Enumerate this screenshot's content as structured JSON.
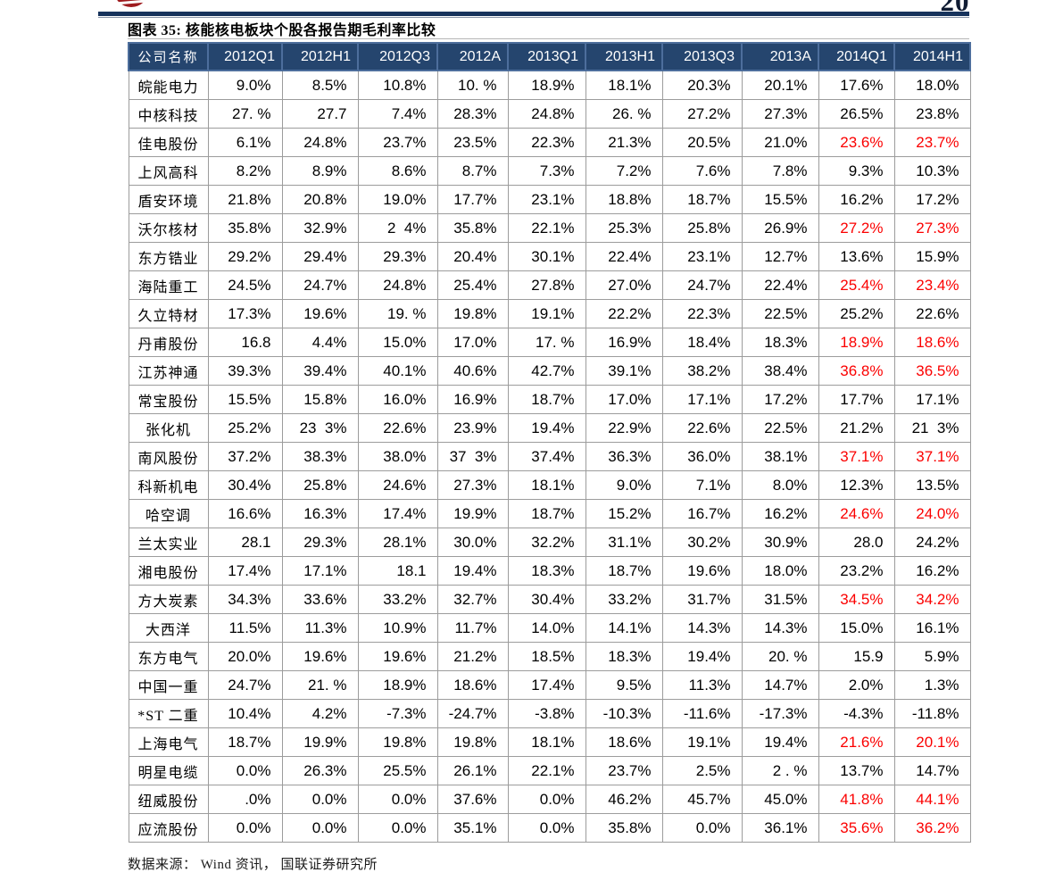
{
  "page": {
    "number": "20",
    "source_note": "数据来源： Wind 资讯， 国联证券研究所"
  },
  "figure": {
    "title": "图表 35: 核能核电板块个股各报告期毛利率比较"
  },
  "icons": {
    "brand_logo": "red-globe-logo"
  },
  "colors": {
    "header_bg": "#25456e",
    "header_border": "#4d6e9c",
    "grid_border": "#9c9c9c",
    "highlight_red": "#fb0000",
    "top_rule_navy": "#17335c",
    "logo_red": "#9e1b1e"
  },
  "table": {
    "columns": [
      "公司名称",
      "2012Q1",
      "2012H1",
      "2012Q3",
      "2012A",
      "2013Q1",
      "2013H1",
      "2013Q3",
      "2013A",
      "2014Q1",
      "2014H1"
    ],
    "rows": [
      {
        "name": "皖能电力",
        "values": [
          "9.0%",
          "8.5%",
          "10.8%",
          "10. %",
          "18.9%",
          "18.1%",
          "20.3%",
          "20.1%",
          "17.6%",
          "18.0%"
        ],
        "red_cols": []
      },
      {
        "name": "中核科技",
        "values": [
          "27. %",
          "27.7",
          "7.4%",
          "28.3%",
          "24.8%",
          "26. %",
          "27.2%",
          "27.3%",
          "26.5%",
          "23.8%"
        ],
        "red_cols": []
      },
      {
        "name": "佳电股份",
        "values": [
          "6.1%",
          "24.8%",
          "23.7%",
          "23.5%",
          "22.3%",
          "21.3%",
          "20.5%",
          "21.0%",
          "23.6%",
          "23.7%"
        ],
        "red_cols": [
          8,
          9
        ]
      },
      {
        "name": "上风高科",
        "values": [
          "8.2%",
          "8.9%",
          "8.6%",
          "8.7%",
          "7.3%",
          "7.2%",
          "7.6%",
          "7.8%",
          "9.3%",
          "10.3%"
        ],
        "red_cols": []
      },
      {
        "name": "盾安环境",
        "values": [
          "21.8%",
          "20.8%",
          "19.0%",
          "17.7%",
          "23.1%",
          "18.8%",
          "18.7%",
          "15.5%",
          "16.2%",
          "17.2%"
        ],
        "red_cols": []
      },
      {
        "name": "沃尔核材",
        "values": [
          "35.8%",
          "32.9%",
          "2  4%",
          "35.8%",
          "22.1%",
          "25.3%",
          "25.8%",
          "26.9%",
          "27.2%",
          "27.3%"
        ],
        "red_cols": [
          8,
          9
        ]
      },
      {
        "name": "东方锆业",
        "values": [
          "29.2%",
          "29.4%",
          "29.3%",
          "20.4%",
          "30.1%",
          "22.4%",
          "23.1%",
          "12.7%",
          "13.6%",
          "15.9%"
        ],
        "red_cols": []
      },
      {
        "name": "海陆重工",
        "values": [
          "24.5%",
          "24.7%",
          "24.8%",
          "25.4%",
          "27.8%",
          "27.0%",
          "24.7%",
          "22.4%",
          "25.4%",
          "23.4%"
        ],
        "red_cols": [
          8,
          9
        ]
      },
      {
        "name": "久立特材",
        "values": [
          "17.3%",
          "19.6%",
          "19. %",
          "19.8%",
          "19.1%",
          "22.2%",
          "22.3%",
          "22.5%",
          "25.2%",
          "22.6%"
        ],
        "red_cols": []
      },
      {
        "name": "丹甫股份",
        "values": [
          "16.8",
          "4.4%",
          "15.0%",
          "17.0%",
          "17. %",
          "16.9%",
          "18.4%",
          "18.3%",
          "18.9%",
          "18.6%"
        ],
        "red_cols": [
          8,
          9
        ]
      },
      {
        "name": "江苏神通",
        "values": [
          "39.3%",
          "39.4%",
          "40.1%",
          "40.6%",
          "42.7%",
          "39.1%",
          "38.2%",
          "38.4%",
          "36.8%",
          "36.5%"
        ],
        "red_cols": [
          8,
          9
        ]
      },
      {
        "name": "常宝股份",
        "values": [
          "15.5%",
          "15.8%",
          "16.0%",
          "16.9%",
          "18.7%",
          "17.0%",
          "17.1%",
          "17.2%",
          "17.7%",
          "17.1%"
        ],
        "red_cols": []
      },
      {
        "name": "张化机",
        "values": [
          "25.2%",
          "23  3%",
          "22.6%",
          "23.9%",
          "19.4%",
          "22.9%",
          "22.6%",
          "22.5%",
          "21.2%",
          "21  3%"
        ],
        "red_cols": []
      },
      {
        "name": "南风股份",
        "values": [
          "37.2%",
          "38.3%",
          "38.0%",
          "37  3%",
          "37.4%",
          "36.3%",
          "36.0%",
          "38.1%",
          "37.1%",
          "37.1%"
        ],
        "red_cols": [
          8,
          9
        ]
      },
      {
        "name": "科新机电",
        "values": [
          "30.4%",
          "25.8%",
          "24.6%",
          "27.3%",
          "18.1%",
          "9.0%",
          "7.1%",
          "8.0%",
          "12.3%",
          "13.5%"
        ],
        "red_cols": []
      },
      {
        "name": "哈空调",
        "values": [
          "16.6%",
          "16.3%",
          "17.4%",
          "19.9%",
          "18.7%",
          "15.2%",
          "16.7%",
          "16.2%",
          "24.6%",
          "24.0%"
        ],
        "red_cols": [
          8,
          9
        ]
      },
      {
        "name": "兰太实业",
        "values": [
          "28.1",
          "29.3%",
          "28.1%",
          "30.0%",
          "32.2%",
          "31.1%",
          "30.2%",
          "30.9%",
          "28.0",
          "24.2%"
        ],
        "red_cols": []
      },
      {
        "name": "湘电股份",
        "values": [
          "17.4%",
          "17.1%",
          "18.1",
          "19.4%",
          "18.3%",
          "18.7%",
          "19.6%",
          "18.0%",
          "23.2%",
          "16.2%"
        ],
        "red_cols": []
      },
      {
        "name": "方大炭素",
        "values": [
          "34.3%",
          "33.6%",
          "33.2%",
          "32.7%",
          "30.4%",
          "33.2%",
          "31.7%",
          "31.5%",
          "34.5%",
          "34.2%"
        ],
        "red_cols": [
          8,
          9
        ]
      },
      {
        "name": "大西洋",
        "values": [
          "11.5%",
          "11.3%",
          "10.9%",
          "11.7%",
          "14.0%",
          "14.1%",
          "14.3%",
          "14.3%",
          "15.0%",
          "16.1%"
        ],
        "red_cols": []
      },
      {
        "name": "东方电气",
        "values": [
          "20.0%",
          "19.6%",
          "19.6%",
          "21.2%",
          "18.5%",
          "18.3%",
          "19.4%",
          "20. %",
          "15.9",
          "5.9%"
        ],
        "red_cols": []
      },
      {
        "name": "中国一重",
        "values": [
          "24.7%",
          "21. %",
          "18.9%",
          "18.6%",
          "17.4%",
          "9.5%",
          "11.3%",
          "14.7%",
          "2.0%",
          "1.3%"
        ],
        "red_cols": []
      },
      {
        "name": "*ST 二重",
        "values": [
          "10.4%",
          "4.2%",
          "-7.3%",
          "-24.7%",
          "-3.8%",
          "-10.3%",
          "-11.6%",
          "-17.3%",
          "-4.3%",
          "-11.8%"
        ],
        "red_cols": []
      },
      {
        "name": "上海电气",
        "values": [
          "18.7%",
          "19.9%",
          "19.8%",
          "19.8%",
          "18.1%",
          "18.6%",
          "19.1%",
          "19.4%",
          "21.6%",
          "20.1%"
        ],
        "red_cols": [
          8,
          9
        ]
      },
      {
        "name": "明星电缆",
        "values": [
          "0.0%",
          "26.3%",
          "25.5%",
          "26.1%",
          "22.1%",
          "23.7%",
          "2.5%",
          "2 . %",
          "13.7%",
          "14.7%"
        ],
        "red_cols": []
      },
      {
        "name": "纽威股份",
        "values": [
          ".0%",
          "0.0%",
          "0.0%",
          "37.6%",
          "0.0%",
          "46.2%",
          "45.7%",
          "45.0%",
          "41.8%",
          "44.1%"
        ],
        "red_cols": [
          8,
          9
        ]
      },
      {
        "name": "应流股份",
        "values": [
          "0.0%",
          "0.0%",
          "0.0%",
          "35.1%",
          "0.0%",
          "35.8%",
          "0.0%",
          "36.1%",
          "35.6%",
          "36.2%"
        ],
        "red_cols": [
          8,
          9
        ]
      }
    ]
  }
}
